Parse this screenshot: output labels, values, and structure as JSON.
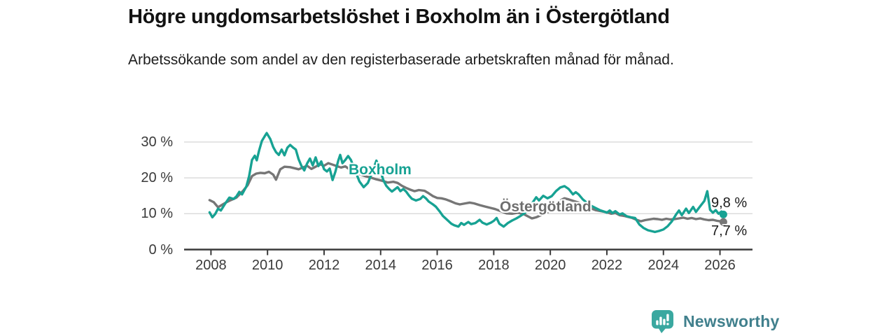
{
  "title": "Högre ungdomsarbetslöshet i Boxholm än i Östergötland",
  "subtitle": "Arbetssökande som andel av den registerbaserade arbetskraften månad för månad.",
  "branding": {
    "logo_text": "Newsworthy",
    "logo_icon": "bar-chart-speech-bubble"
  },
  "colors": {
    "boxholm": "#17a293",
    "ostergotland": "#767676",
    "axis": "#3a3a3a",
    "grid": "#dcdcdc",
    "tick_text": "#3a3a3a",
    "end_label_text": "#1b1b1b",
    "logo_icon": "#3aa8a0",
    "logo_text": "#41808d"
  },
  "chart_data": {
    "type": "line",
    "title": "Högre ungdomsarbetslöshet i Boxholm än i Östergötland",
    "subtitle": "Arbetssökande som andel av den registerbaserade arbetskraften månad för månad.",
    "xlabel": "",
    "ylabel": "",
    "grid": "horizontal",
    "legend_position": "inline-labels",
    "xlim": [
      2007.05,
      2027.15
    ],
    "ylim": [
      0,
      33.5
    ],
    "x_ticks": [
      2008,
      2010,
      2012,
      2014,
      2016,
      2018,
      2020,
      2022,
      2024,
      2026
    ],
    "x_tick_labels": [
      "2008",
      "2010",
      "2012",
      "2014",
      "2016",
      "2018",
      "2020",
      "2022",
      "2024",
      "2026"
    ],
    "y_ticks": [
      0,
      10,
      20,
      30
    ],
    "y_tick_labels": [
      "0 %",
      "10 %",
      "20 %",
      "30 %"
    ],
    "series": [
      {
        "name": "Boxholm",
        "color": "#17a293",
        "end_label": "9,8 %",
        "end_value": 9.8,
        "points": [
          [
            2007.95,
            10.4
          ],
          [
            2008.05,
            9.0
          ],
          [
            2008.15,
            9.9
          ],
          [
            2008.25,
            11.4
          ],
          [
            2008.35,
            10.9
          ],
          [
            2008.5,
            12.8
          ],
          [
            2008.65,
            14.5
          ],
          [
            2008.8,
            14.1
          ],
          [
            2008.9,
            14.8
          ],
          [
            2009.0,
            16.1
          ],
          [
            2009.1,
            15.4
          ],
          [
            2009.25,
            17.6
          ],
          [
            2009.35,
            20.5
          ],
          [
            2009.45,
            25.0
          ],
          [
            2009.55,
            26.2
          ],
          [
            2009.62,
            24.9
          ],
          [
            2009.7,
            27.6
          ],
          [
            2009.8,
            30.3
          ],
          [
            2009.9,
            31.6
          ],
          [
            2009.97,
            32.5
          ],
          [
            2010.1,
            30.8
          ],
          [
            2010.2,
            28.6
          ],
          [
            2010.3,
            27.2
          ],
          [
            2010.4,
            26.4
          ],
          [
            2010.5,
            27.9
          ],
          [
            2010.6,
            26.3
          ],
          [
            2010.7,
            28.4
          ],
          [
            2010.8,
            29.2
          ],
          [
            2010.9,
            28.5
          ],
          [
            2011.0,
            27.9
          ],
          [
            2011.1,
            25.2
          ],
          [
            2011.2,
            23.3
          ],
          [
            2011.3,
            22.1
          ],
          [
            2011.4,
            24.0
          ],
          [
            2011.5,
            25.4
          ],
          [
            2011.6,
            23.5
          ],
          [
            2011.7,
            25.7
          ],
          [
            2011.8,
            23.3
          ],
          [
            2011.9,
            24.6
          ],
          [
            2012.0,
            22.4
          ],
          [
            2012.1,
            21.8
          ],
          [
            2012.2,
            22.6
          ],
          [
            2012.3,
            19.4
          ],
          [
            2012.4,
            21.7
          ],
          [
            2012.5,
            24.8
          ],
          [
            2012.57,
            26.4
          ],
          [
            2012.65,
            24.1
          ],
          [
            2012.75,
            25.0
          ],
          [
            2012.85,
            26.1
          ],
          [
            2012.95,
            25.0
          ],
          [
            2013.1,
            22.0
          ],
          [
            2013.25,
            19.0
          ],
          [
            2013.4,
            17.4
          ],
          [
            2013.55,
            18.6
          ],
          [
            2013.7,
            21.5
          ],
          [
            2013.85,
            24.8
          ],
          [
            2013.95,
            23.0
          ],
          [
            2014.1,
            19.3
          ],
          [
            2014.2,
            17.8
          ],
          [
            2014.3,
            16.9
          ],
          [
            2014.4,
            16.2
          ],
          [
            2014.5,
            16.8
          ],
          [
            2014.6,
            17.4
          ],
          [
            2014.7,
            16.3
          ],
          [
            2014.8,
            16.9
          ],
          [
            2014.9,
            16.2
          ],
          [
            2015.0,
            15.1
          ],
          [
            2015.1,
            14.2
          ],
          [
            2015.25,
            13.7
          ],
          [
            2015.4,
            14.1
          ],
          [
            2015.5,
            14.9
          ],
          [
            2015.6,
            14.3
          ],
          [
            2015.7,
            13.4
          ],
          [
            2015.85,
            12.6
          ],
          [
            2015.95,
            12.0
          ],
          [
            2016.1,
            10.5
          ],
          [
            2016.2,
            9.4
          ],
          [
            2016.35,
            8.3
          ],
          [
            2016.5,
            7.2
          ],
          [
            2016.6,
            6.8
          ],
          [
            2016.75,
            6.4
          ],
          [
            2016.85,
            7.4
          ],
          [
            2016.95,
            6.9
          ],
          [
            2017.1,
            7.7
          ],
          [
            2017.2,
            7.1
          ],
          [
            2017.35,
            7.4
          ],
          [
            2017.5,
            8.3
          ],
          [
            2017.6,
            7.5
          ],
          [
            2017.75,
            7.0
          ],
          [
            2017.9,
            7.5
          ],
          [
            2018.0,
            8.0
          ],
          [
            2018.1,
            8.8
          ],
          [
            2018.2,
            7.2
          ],
          [
            2018.35,
            6.4
          ],
          [
            2018.5,
            7.4
          ],
          [
            2018.65,
            8.1
          ],
          [
            2018.8,
            8.7
          ],
          [
            2018.95,
            9.4
          ],
          [
            2019.1,
            10.2
          ],
          [
            2019.25,
            11.5
          ],
          [
            2019.4,
            13.4
          ],
          [
            2019.5,
            14.6
          ],
          [
            2019.6,
            13.7
          ],
          [
            2019.75,
            15.0
          ],
          [
            2019.9,
            14.3
          ],
          [
            2020.05,
            14.9
          ],
          [
            2020.2,
            16.3
          ],
          [
            2020.35,
            17.3
          ],
          [
            2020.5,
            17.7
          ],
          [
            2020.65,
            16.9
          ],
          [
            2020.8,
            15.4
          ],
          [
            2020.9,
            16.0
          ],
          [
            2021.0,
            15.4
          ],
          [
            2021.15,
            14.0
          ],
          [
            2021.3,
            13.0
          ],
          [
            2021.45,
            12.2
          ],
          [
            2021.6,
            11.6
          ],
          [
            2021.75,
            11.0
          ],
          [
            2021.9,
            10.6
          ],
          [
            2022.0,
            10.3
          ],
          [
            2022.1,
            10.9
          ],
          [
            2022.2,
            10.2
          ],
          [
            2022.3,
            10.7
          ],
          [
            2022.45,
            9.8
          ],
          [
            2022.55,
            10.1
          ],
          [
            2022.7,
            9.3
          ],
          [
            2022.85,
            9.0
          ],
          [
            2023.0,
            8.8
          ],
          [
            2023.15,
            7.0
          ],
          [
            2023.3,
            6.0
          ],
          [
            2023.45,
            5.4
          ],
          [
            2023.6,
            5.1
          ],
          [
            2023.7,
            4.9
          ],
          [
            2023.85,
            5.2
          ],
          [
            2024.0,
            5.6
          ],
          [
            2024.15,
            6.5
          ],
          [
            2024.3,
            7.9
          ],
          [
            2024.45,
            9.8
          ],
          [
            2024.55,
            10.9
          ],
          [
            2024.65,
            9.6
          ],
          [
            2024.8,
            11.4
          ],
          [
            2024.9,
            10.2
          ],
          [
            2025.05,
            11.9
          ],
          [
            2025.15,
            10.5
          ],
          [
            2025.3,
            12.1
          ],
          [
            2025.45,
            13.6
          ],
          [
            2025.55,
            16.3
          ],
          [
            2025.65,
            11.1
          ],
          [
            2025.75,
            10.3
          ],
          [
            2025.85,
            11.0
          ],
          [
            2025.95,
            10.0
          ],
          [
            2026.05,
            10.6
          ],
          [
            2026.12,
            9.8
          ]
        ]
      },
      {
        "name": "Östergötland",
        "color": "#767676",
        "end_label": "7,7 %",
        "end_value": 7.7,
        "points": [
          [
            2007.95,
            13.8
          ],
          [
            2008.1,
            13.2
          ],
          [
            2008.25,
            11.8
          ],
          [
            2008.4,
            12.5
          ],
          [
            2008.55,
            13.2
          ],
          [
            2008.7,
            13.8
          ],
          [
            2008.9,
            14.5
          ],
          [
            2009.0,
            15.3
          ],
          [
            2009.15,
            16.5
          ],
          [
            2009.3,
            18.0
          ],
          [
            2009.45,
            20.5
          ],
          [
            2009.6,
            21.2
          ],
          [
            2009.75,
            21.4
          ],
          [
            2009.9,
            21.3
          ],
          [
            2010.05,
            21.7
          ],
          [
            2010.2,
            20.9
          ],
          [
            2010.3,
            19.5
          ],
          [
            2010.45,
            22.4
          ],
          [
            2010.6,
            23.1
          ],
          [
            2010.8,
            23.0
          ],
          [
            2010.95,
            22.7
          ],
          [
            2011.1,
            22.4
          ],
          [
            2011.25,
            22.9
          ],
          [
            2011.4,
            23.4
          ],
          [
            2011.55,
            22.5
          ],
          [
            2011.7,
            23.1
          ],
          [
            2011.85,
            23.8
          ],
          [
            2012.0,
            23.4
          ],
          [
            2012.15,
            24.1
          ],
          [
            2012.3,
            23.7
          ],
          [
            2012.45,
            23.3
          ],
          [
            2012.6,
            22.9
          ],
          [
            2012.75,
            23.2
          ],
          [
            2012.9,
            22.4
          ],
          [
            2013.05,
            21.8
          ],
          [
            2013.25,
            21.1
          ],
          [
            2013.45,
            20.5
          ],
          [
            2013.65,
            20.1
          ],
          [
            2013.85,
            19.6
          ],
          [
            2014.05,
            19.2
          ],
          [
            2014.25,
            18.7
          ],
          [
            2014.45,
            18.9
          ],
          [
            2014.6,
            18.6
          ],
          [
            2014.75,
            17.8
          ],
          [
            2014.9,
            17.2
          ],
          [
            2015.05,
            16.7
          ],
          [
            2015.2,
            16.3
          ],
          [
            2015.35,
            16.6
          ],
          [
            2015.55,
            16.4
          ],
          [
            2015.7,
            15.7
          ],
          [
            2015.85,
            14.9
          ],
          [
            2016.0,
            14.4
          ],
          [
            2016.15,
            14.3
          ],
          [
            2016.3,
            14.0
          ],
          [
            2016.5,
            13.4
          ],
          [
            2016.65,
            12.9
          ],
          [
            2016.8,
            12.6
          ],
          [
            2017.0,
            12.9
          ],
          [
            2017.15,
            13.1
          ],
          [
            2017.3,
            12.9
          ],
          [
            2017.5,
            12.4
          ],
          [
            2017.7,
            12.0
          ],
          [
            2017.9,
            11.6
          ],
          [
            2018.05,
            11.3
          ],
          [
            2018.25,
            10.7
          ],
          [
            2018.45,
            10.1
          ],
          [
            2018.65,
            10.0
          ],
          [
            2018.85,
            10.3
          ],
          [
            2019.05,
            9.9
          ],
          [
            2019.2,
            9.3
          ],
          [
            2019.35,
            8.7
          ],
          [
            2019.5,
            9.0
          ],
          [
            2019.7,
            9.7
          ],
          [
            2019.9,
            10.4
          ],
          [
            2020.1,
            11.3
          ],
          [
            2020.25,
            12.6
          ],
          [
            2020.4,
            13.9
          ],
          [
            2020.5,
            14.3
          ],
          [
            2020.65,
            14.0
          ],
          [
            2020.8,
            13.6
          ],
          [
            2021.0,
            13.1
          ],
          [
            2021.2,
            12.4
          ],
          [
            2021.4,
            11.6
          ],
          [
            2021.6,
            11.0
          ],
          [
            2021.8,
            10.7
          ],
          [
            2022.0,
            10.4
          ],
          [
            2022.15,
            10.0
          ],
          [
            2022.3,
            10.2
          ],
          [
            2022.45,
            9.6
          ],
          [
            2022.6,
            9.4
          ],
          [
            2022.75,
            9.1
          ],
          [
            2022.9,
            8.8
          ],
          [
            2023.05,
            8.3
          ],
          [
            2023.2,
            7.9
          ],
          [
            2023.35,
            8.2
          ],
          [
            2023.5,
            8.4
          ],
          [
            2023.65,
            8.6
          ],
          [
            2023.8,
            8.5
          ],
          [
            2023.95,
            8.3
          ],
          [
            2024.1,
            8.6
          ],
          [
            2024.25,
            8.4
          ],
          [
            2024.4,
            8.5
          ],
          [
            2024.55,
            8.7
          ],
          [
            2024.7,
            8.9
          ],
          [
            2024.85,
            8.6
          ],
          [
            2025.0,
            8.8
          ],
          [
            2025.15,
            8.5
          ],
          [
            2025.3,
            8.7
          ],
          [
            2025.45,
            8.4
          ],
          [
            2025.6,
            8.2
          ],
          [
            2025.75,
            8.3
          ],
          [
            2025.9,
            8.0
          ],
          [
            2026.0,
            7.9
          ],
          [
            2026.12,
            7.7
          ]
        ]
      }
    ]
  }
}
